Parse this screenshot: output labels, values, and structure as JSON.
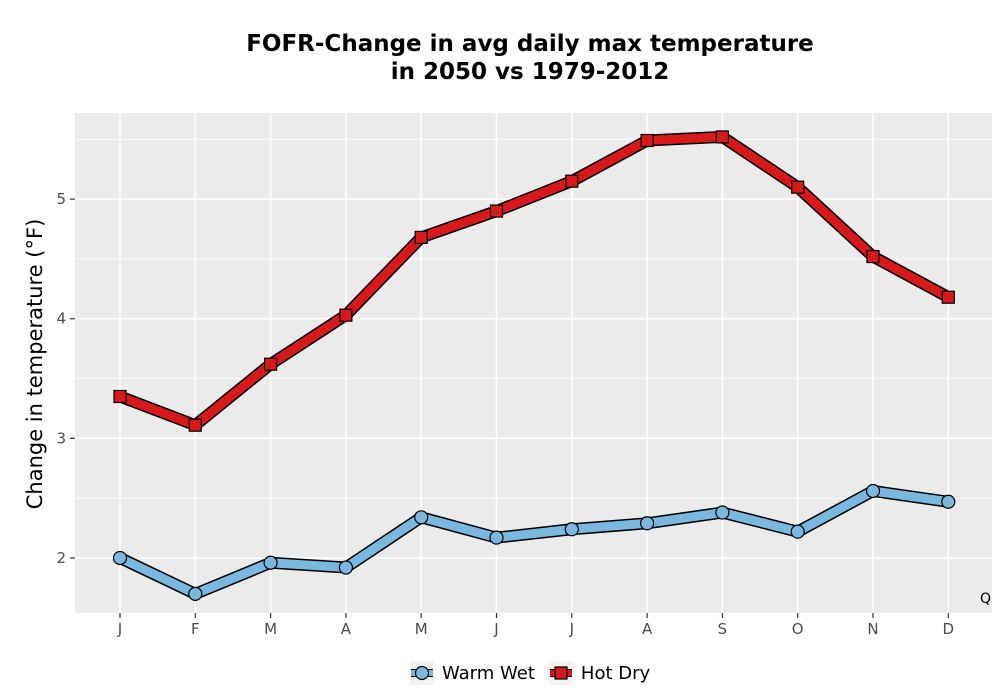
{
  "chart_data": {
    "type": "line",
    "title": "FOFR-Change in avg daily max temperature",
    "subtitle": "in 2050 vs 1979-2012",
    "xlabel": "",
    "ylabel": "Change in temperature (°F)",
    "categories": [
      "J",
      "F",
      "M",
      "A",
      "M",
      "J",
      "J",
      "A",
      "S",
      "O",
      "N",
      "D"
    ],
    "ylim": [
      1.54,
      5.72
    ],
    "yticks": [
      2,
      3,
      4,
      5
    ],
    "grid": true,
    "legend_position": "bottom",
    "corner_label": "Q",
    "series": [
      {
        "name": "Warm Wet",
        "color": "#7ab8e0",
        "marker": "circle",
        "values": [
          2.0,
          1.7,
          1.96,
          1.92,
          2.34,
          2.17,
          2.24,
          2.29,
          2.38,
          2.22,
          2.56,
          2.47
        ]
      },
      {
        "name": "Hot Dry",
        "color": "#d7191c",
        "marker": "square",
        "values": [
          3.35,
          3.11,
          3.62,
          4.03,
          4.68,
          4.9,
          5.15,
          5.49,
          5.52,
          5.1,
          4.52,
          4.18
        ]
      }
    ]
  }
}
